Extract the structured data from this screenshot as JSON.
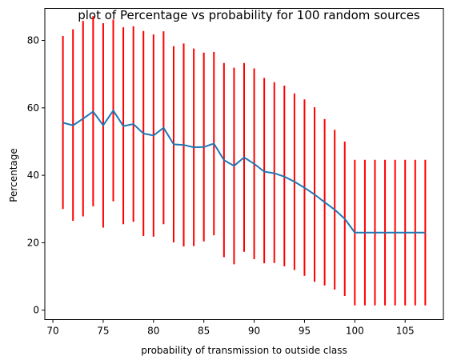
{
  "chart_data": {
    "type": "line",
    "title": "plot of Percentage vs probability for 100 random sources",
    "xlabel": "probability of transmission to outside class",
    "ylabel": "Percentage",
    "xlim": [
      69.2,
      108.8
    ],
    "ylim": [
      -2.8,
      89.5
    ],
    "xticks": [
      70,
      75,
      80,
      85,
      90,
      95,
      100,
      105
    ],
    "yticks": [
      0,
      20,
      40,
      60,
      80
    ],
    "grid": false,
    "colors": {
      "line": "#1f77b4",
      "errorbar": "#ff0000"
    },
    "series": [
      {
        "x": [
          71,
          72,
          73,
          74,
          75,
          76,
          77,
          78,
          79,
          80,
          81,
          82,
          83,
          84,
          85,
          86,
          87,
          88,
          89,
          90,
          91,
          92,
          93,
          94,
          95,
          96,
          97,
          98,
          99,
          100,
          101,
          102,
          103,
          104,
          105,
          106,
          107
        ],
        "y": [
          55.6,
          54.8,
          56.8,
          58.9,
          54.8,
          59.2,
          54.6,
          55.2,
          52.4,
          51.8,
          54.1,
          49.2,
          49.0,
          48.3,
          48.4,
          49.4,
          44.5,
          42.8,
          45.3,
          43.4,
          41.1,
          40.6,
          39.6,
          38.1,
          36.3,
          34.3,
          32.0,
          29.8,
          27.1,
          23.0,
          23.0,
          23.0,
          23.0,
          23.0,
          23.0,
          23.0,
          23.0
        ],
        "err_low": [
          30.0,
          26.5,
          27.8,
          30.8,
          24.5,
          32.3,
          25.5,
          26.2,
          22.0,
          21.8,
          25.5,
          20.1,
          18.9,
          19.0,
          20.4,
          22.2,
          15.7,
          13.6,
          17.3,
          15.1,
          13.9,
          14.0,
          13.0,
          11.9,
          10.2,
          8.4,
          7.3,
          6.1,
          4.2,
          1.4,
          1.4,
          1.4,
          1.4,
          1.4,
          1.4,
          1.4,
          1.4
        ],
        "err_high": [
          81.3,
          83.3,
          85.8,
          87.2,
          85.1,
          86.2,
          83.9,
          84.2,
          82.8,
          81.8,
          82.7,
          78.3,
          79.1,
          77.6,
          76.4,
          76.6,
          73.3,
          71.9,
          73.3,
          71.7,
          68.9,
          67.6,
          66.6,
          64.3,
          62.5,
          60.2,
          56.7,
          53.5,
          50.0,
          44.6,
          44.6,
          44.6,
          44.6,
          44.6,
          44.6,
          44.6,
          44.6
        ]
      }
    ]
  }
}
